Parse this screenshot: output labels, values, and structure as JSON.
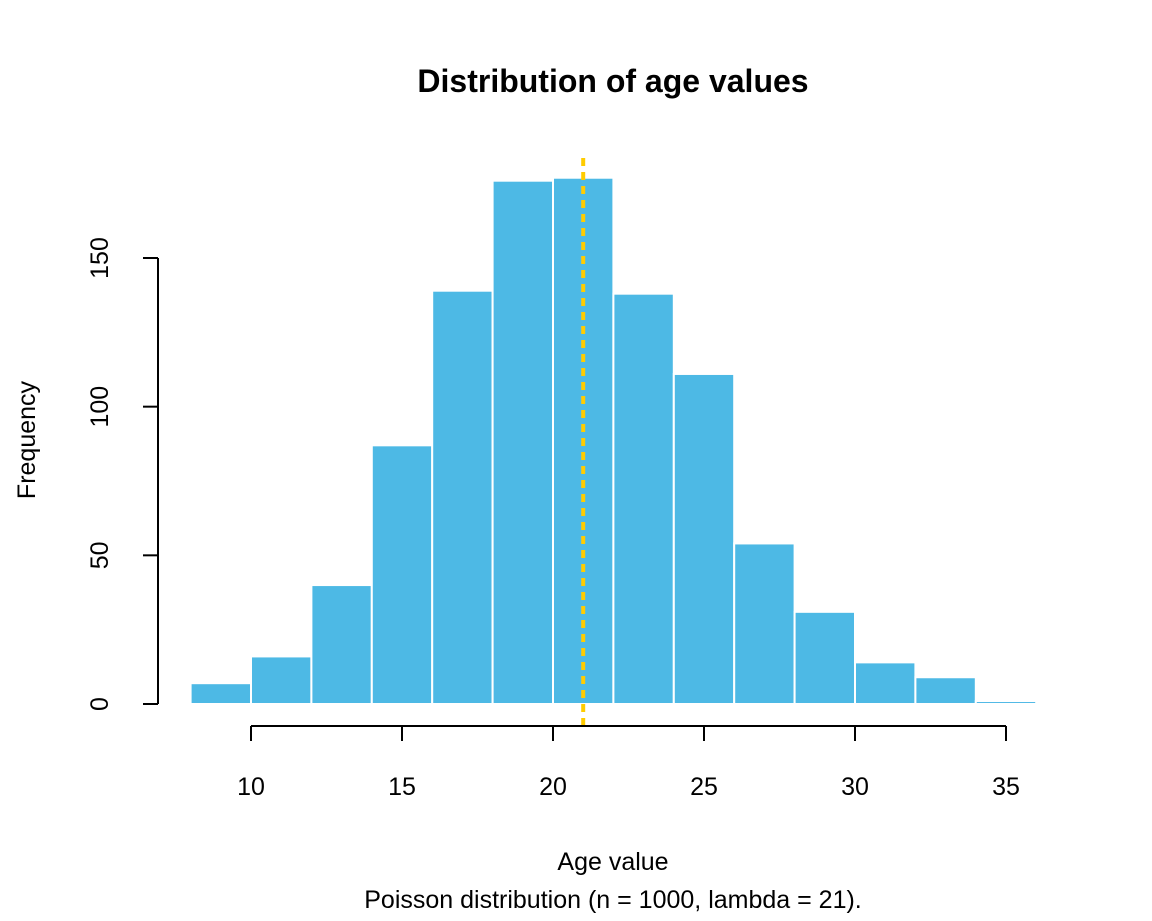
{
  "chart_data": {
    "type": "bar",
    "title": "Distribution of age values",
    "xlabel": "Age value",
    "subtitle": "Poisson distribution (n = 1000, lambda = 21).",
    "ylabel": "Frequency",
    "bins": [
      [
        8,
        10
      ],
      [
        10,
        12
      ],
      [
        12,
        14
      ],
      [
        14,
        16
      ],
      [
        16,
        18
      ],
      [
        18,
        20
      ],
      [
        20,
        22
      ],
      [
        22,
        24
      ],
      [
        24,
        26
      ],
      [
        26,
        28
      ],
      [
        28,
        30
      ],
      [
        30,
        32
      ],
      [
        32,
        34
      ],
      [
        34,
        36
      ]
    ],
    "values": [
      7,
      16,
      40,
      87,
      139,
      176,
      177,
      138,
      111,
      54,
      31,
      14,
      9,
      1
    ],
    "xticks": [
      10,
      15,
      20,
      25,
      30,
      35
    ],
    "yticks": [
      0,
      50,
      100,
      150
    ],
    "xlim": [
      10,
      35
    ],
    "ylim": [
      0,
      150
    ],
    "mean_line": 21,
    "colors": {
      "bar": "#4DB9E5",
      "bar_border": "#ffffff",
      "mean_line": "#FFCC00"
    }
  }
}
